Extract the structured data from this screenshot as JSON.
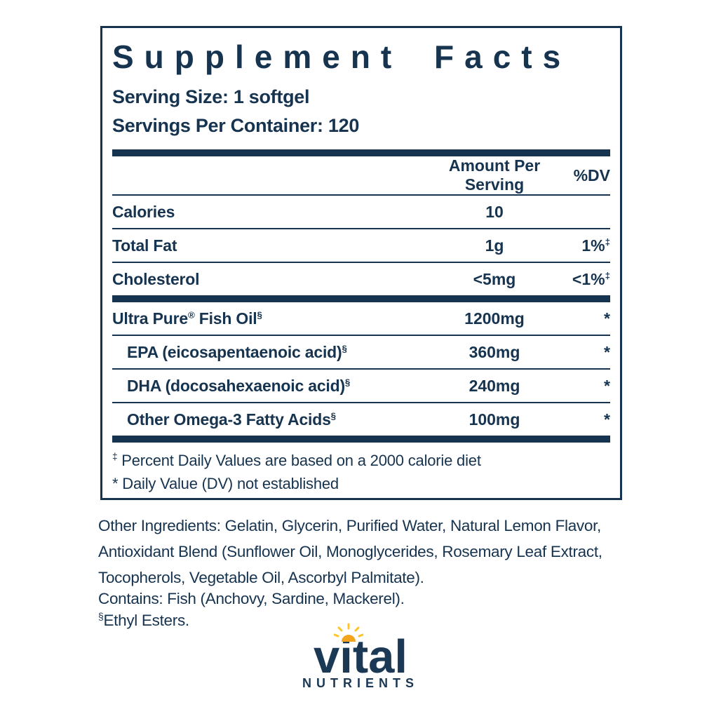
{
  "colors": {
    "navy": "#16334f",
    "sun_gold": "#F2A41E",
    "sun_ray": "#FFC425"
  },
  "panel": {
    "title": "Supplement Facts",
    "serving_size": "Serving Size: 1 softgel",
    "servings_per_container": "Servings Per Container: 120",
    "header": {
      "amount": "Amount Per Serving",
      "dv": "%DV"
    },
    "rows": [
      {
        "label_parts": [
          {
            "t": "Calories"
          }
        ],
        "amount": "10",
        "dv_parts": [],
        "indent": false,
        "after": "thin"
      },
      {
        "label_parts": [
          {
            "t": "Total Fat"
          }
        ],
        "amount": "1g",
        "dv_parts": [
          {
            "t": "1%"
          },
          {
            "t": "‡",
            "sup": true
          }
        ],
        "indent": false,
        "after": "thin"
      },
      {
        "label_parts": [
          {
            "t": "Cholesterol"
          }
        ],
        "amount": "<5mg",
        "dv_parts": [
          {
            "t": "<1%"
          },
          {
            "t": "‡",
            "sup": true
          }
        ],
        "indent": false,
        "after": "thick"
      },
      {
        "label_parts": [
          {
            "t": "Ultra Pure"
          },
          {
            "t": "®",
            "sup": true
          },
          {
            "t": " Fish Oil"
          },
          {
            "t": "§",
            "sup": true
          }
        ],
        "amount": "1200mg",
        "dv_parts": [
          {
            "t": "*"
          }
        ],
        "indent": false,
        "after": "thin"
      },
      {
        "label_parts": [
          {
            "t": "EPA (eicosapentaenoic acid)"
          },
          {
            "t": "§",
            "sup": true
          }
        ],
        "amount": "360mg",
        "dv_parts": [
          {
            "t": "*"
          }
        ],
        "indent": true,
        "after": "thin"
      },
      {
        "label_parts": [
          {
            "t": "DHA (docosahexaenoic acid)"
          },
          {
            "t": "§",
            "sup": true
          }
        ],
        "amount": "240mg",
        "dv_parts": [
          {
            "t": "*"
          }
        ],
        "indent": true,
        "after": "thin"
      },
      {
        "label_parts": [
          {
            "t": "Other Omega-3 Fatty Acids"
          },
          {
            "t": "§",
            "sup": true
          }
        ],
        "amount": "100mg",
        "dv_parts": [
          {
            "t": "*"
          }
        ],
        "indent": true,
        "after": "thick"
      }
    ],
    "footnotes": [
      {
        "symbol": "‡",
        "sup": true,
        "text": "Percent Daily Values are based on a 2000 calorie diet"
      },
      {
        "symbol": "*",
        "sup": false,
        "text": "Daily Value (DV) not established"
      }
    ]
  },
  "other_ingredients_lines": [
    "Other Ingredients: Gelatin, Glycerin, Purified Water, Natural Lemon Flavor,",
    "Antioxidant Blend (Sunflower Oil, Monoglycerides, Rosemary Leaf Extract,",
    "Tocopherols, Vegetable Oil, Ascorbyl Palmitate)."
  ],
  "contains": "Contains: Fish (Anchovy, Sardine, Mackerel).",
  "ethyl_esters": {
    "symbol": "§",
    "text": "Ethyl Esters."
  },
  "logo": {
    "word": "vital",
    "subword": "NUTRIENTS",
    "icon": "sun-icon"
  }
}
